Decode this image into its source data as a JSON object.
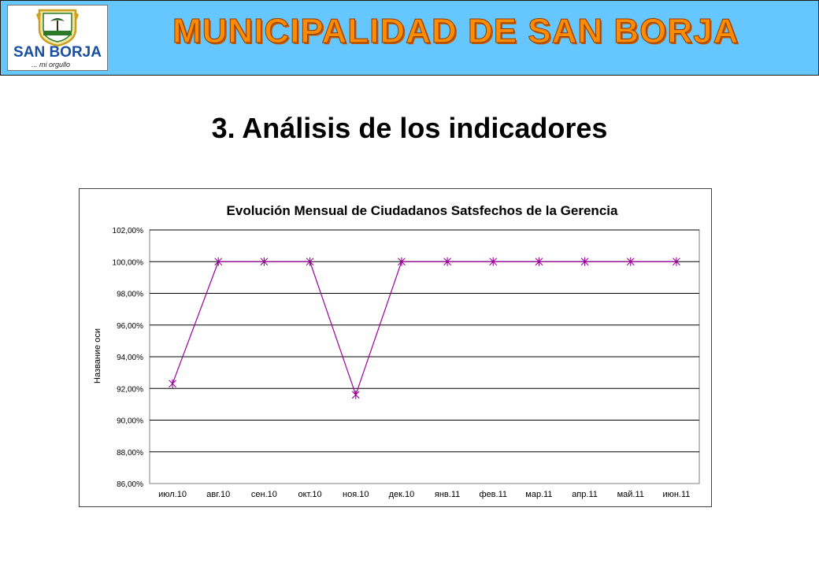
{
  "header": {
    "logo": {
      "name": "SAN BORJA",
      "motto": "... mi orgullo"
    },
    "banner_title": "MUNICIPALIDAD DE SAN BORJA",
    "colors": {
      "banner_bg": "#66c7ff",
      "banner_text": "#ff8c00"
    }
  },
  "page": {
    "title": "3. Análisis de los indicadores"
  },
  "chart_data": {
    "type": "line",
    "title": "Evolución Mensual de Ciudadanos Satsfechos de la Gerencia",
    "xlabel": "",
    "ylabel": "Название оси",
    "categories": [
      "июл.10",
      "авг.10",
      "сен.10",
      "окт.10",
      "ноя.10",
      "дек.10",
      "янв.11",
      "фев.11",
      "мар.11",
      "апр.11",
      "май.11",
      "июн.11"
    ],
    "series": [
      {
        "values": [
          92.3,
          100,
          100,
          100,
          91.6,
          100,
          100,
          100,
          100,
          100,
          100,
          100
        ],
        "color": "#990099",
        "marker": "asterisk"
      }
    ],
    "ylim": [
      86,
      102
    ],
    "yticks": [
      86,
      88,
      90,
      92,
      94,
      96,
      98,
      100,
      102
    ],
    "ytick_labels": [
      "86,00%",
      "88,00%",
      "90,00%",
      "92,00%",
      "94,00%",
      "96,00%",
      "98,00%",
      "100,00%",
      "102,00%"
    ],
    "grid": true,
    "legend": "none"
  }
}
